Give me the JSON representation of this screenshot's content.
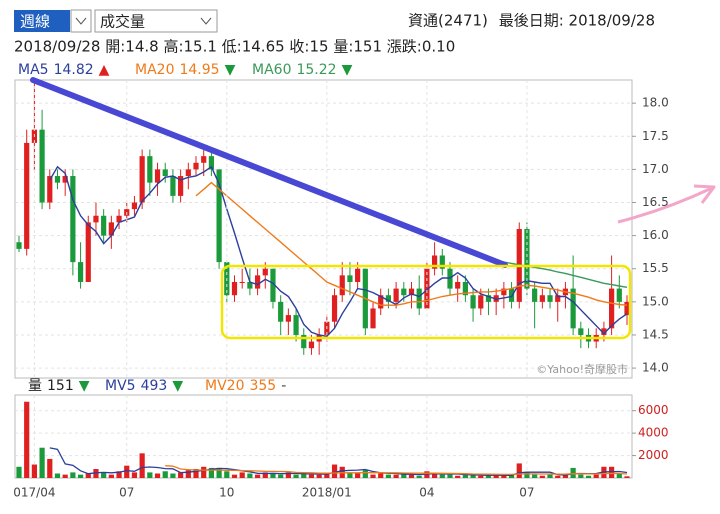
{
  "header": {
    "period": "週線",
    "indicator": "成交量",
    "stock": "資通(2471)",
    "last_date": "最後日期: 2018/09/28",
    "info": "2018/09/28 開:14.8 高:15.1 低:14.65 收:15 量:151 漲跌:0.10"
  },
  "chart_data": [
    {
      "type": "candlestick",
      "up_color": "#e02020",
      "down_color": "#1a9a3a",
      "watermark": "©Yahoo!奇摩股市",
      "grid": true,
      "ylim": [
        13.85,
        18.35
      ],
      "yticks": [
        {
          "value": 14,
          "label": "14.0"
        },
        14.5,
        {
          "value": 15,
          "label": "15.0"
        },
        15.5,
        {
          "value": 16,
          "label": "16.0"
        },
        16.5,
        {
          "value": 17,
          "label": "17.0"
        },
        17.5,
        {
          "value": 18,
          "label": "18.0"
        }
      ],
      "ohlc": [
        [
          15.9,
          16.0,
          15.75,
          15.8
        ],
        [
          15.8,
          17.6,
          15.7,
          17.4
        ],
        [
          17.4,
          18.3,
          17.0,
          17.6
        ],
        [
          17.6,
          17.9,
          16.4,
          16.5
        ],
        [
          16.5,
          17.0,
          16.4,
          16.9
        ],
        [
          16.9,
          17.0,
          16.7,
          16.8
        ],
        [
          16.8,
          17.0,
          16.6,
          16.9
        ],
        [
          16.9,
          17.0,
          15.4,
          15.6
        ],
        [
          15.6,
          15.9,
          15.2,
          15.3
        ],
        [
          15.3,
          16.3,
          15.3,
          16.2
        ],
        [
          16.2,
          16.5,
          16.0,
          16.3
        ],
        [
          16.3,
          16.4,
          15.9,
          16.0
        ],
        [
          16.0,
          16.3,
          15.8,
          16.2
        ],
        [
          16.2,
          16.4,
          16.1,
          16.3
        ],
        [
          16.3,
          16.5,
          16.2,
          16.4
        ],
        [
          16.4,
          16.6,
          16.3,
          16.5
        ],
        [
          16.5,
          17.3,
          16.4,
          17.2
        ],
        [
          17.2,
          17.3,
          16.6,
          16.8
        ],
        [
          16.8,
          17.1,
          16.6,
          17.0
        ],
        [
          17.0,
          17.1,
          16.8,
          16.9
        ],
        [
          16.9,
          17.0,
          16.5,
          16.6
        ],
        [
          16.6,
          17.0,
          16.5,
          16.9
        ],
        [
          16.9,
          17.1,
          16.7,
          17.0
        ],
        [
          17.0,
          17.2,
          16.9,
          17.1
        ],
        [
          17.1,
          17.3,
          16.9,
          17.2
        ],
        [
          17.2,
          17.3,
          16.9,
          17.0
        ],
        [
          17.0,
          17.0,
          15.5,
          15.6
        ],
        [
          15.6,
          15.6,
          15.0,
          15.1
        ],
        [
          15.1,
          15.4,
          15.0,
          15.3
        ],
        [
          15.3,
          15.5,
          15.2,
          15.3
        ],
        [
          15.3,
          15.5,
          15.1,
          15.2
        ],
        [
          15.2,
          15.5,
          15.1,
          15.4
        ],
        [
          15.4,
          15.6,
          15.2,
          15.5
        ],
        [
          15.5,
          15.5,
          14.9,
          15.0
        ],
        [
          15.0,
          15.1,
          14.5,
          14.7
        ],
        [
          14.7,
          14.9,
          14.5,
          14.8
        ],
        [
          14.8,
          14.9,
          14.4,
          14.5
        ],
        [
          14.5,
          14.6,
          14.2,
          14.3
        ],
        [
          14.3,
          14.5,
          14.2,
          14.4
        ],
        [
          14.4,
          14.6,
          14.2,
          14.5
        ],
        [
          14.5,
          14.8,
          14.4,
          14.7
        ],
        [
          14.7,
          15.2,
          14.6,
          15.1
        ],
        [
          15.1,
          15.6,
          15.0,
          15.4
        ],
        [
          15.4,
          15.6,
          15.1,
          15.3
        ],
        [
          15.3,
          15.6,
          15.2,
          15.5
        ],
        [
          15.5,
          15.5,
          14.5,
          14.6
        ],
        [
          14.6,
          15.0,
          14.6,
          14.9
        ],
        [
          14.9,
          15.2,
          14.8,
          15.1
        ],
        [
          15.1,
          15.2,
          14.9,
          15.0
        ],
        [
          15.0,
          15.3,
          14.9,
          15.2
        ],
        [
          15.2,
          15.3,
          15.0,
          15.1
        ],
        [
          15.1,
          15.3,
          14.9,
          15.2
        ],
        [
          15.2,
          15.4,
          14.8,
          14.9
        ],
        [
          14.9,
          15.6,
          14.9,
          15.5
        ],
        [
          15.5,
          15.9,
          15.4,
          15.7
        ],
        [
          15.7,
          15.8,
          15.4,
          15.5
        ],
        [
          15.5,
          15.6,
          15.1,
          15.2
        ],
        [
          15.2,
          15.4,
          15.0,
          15.3
        ],
        [
          15.3,
          15.4,
          15.0,
          15.1
        ],
        [
          15.1,
          15.2,
          14.7,
          14.9
        ],
        [
          14.9,
          15.2,
          14.8,
          15.1
        ],
        [
          15.1,
          15.2,
          14.8,
          15.0
        ],
        [
          15.0,
          15.2,
          14.8,
          15.1
        ],
        [
          15.1,
          15.3,
          14.9,
          15.2
        ],
        [
          15.2,
          15.3,
          14.9,
          15.0
        ],
        [
          15.0,
          16.2,
          14.9,
          16.1
        ],
        [
          16.1,
          16.2,
          15.1,
          15.2
        ],
        [
          15.2,
          15.3,
          14.6,
          15.0
        ],
        [
          15.0,
          15.2,
          14.9,
          15.1
        ],
        [
          15.1,
          15.2,
          14.9,
          15.0
        ],
        [
          15.0,
          15.2,
          14.7,
          15.1
        ],
        [
          15.1,
          15.3,
          14.9,
          15.2
        ],
        [
          15.2,
          15.7,
          14.5,
          14.6
        ],
        [
          14.6,
          14.7,
          14.3,
          14.5
        ],
        [
          14.5,
          14.6,
          14.3,
          14.4
        ],
        [
          14.4,
          14.6,
          14.3,
          14.5
        ],
        [
          14.5,
          14.7,
          14.4,
          14.6
        ],
        [
          14.6,
          15.7,
          14.5,
          15.2
        ],
        [
          15.2,
          15.4,
          14.9,
          15.0
        ],
        [
          14.8,
          15.1,
          14.65,
          15.0
        ]
      ],
      "series": [
        {
          "name": "MA5",
          "color": "#2b3f9e",
          "trend": "▲",
          "values": [
            null,
            null,
            null,
            null,
            16.84,
            17.04,
            16.94,
            16.54,
            16.3,
            16.16,
            16.06,
            15.88,
            16.0,
            16.2,
            16.24,
            16.28,
            16.52,
            16.64,
            16.78,
            16.88,
            16.9,
            16.84,
            16.88,
            16.9,
            16.96,
            17.04,
            16.78,
            16.4,
            16.04,
            15.66,
            15.3,
            15.26,
            15.34,
            15.28,
            15.16,
            15.08,
            14.9,
            14.66,
            14.54,
            14.5,
            14.48,
            14.6,
            14.82,
            15.0,
            15.2,
            15.18,
            15.14,
            15.08,
            15.02,
            14.96,
            15.06,
            15.12,
            15.08,
            15.18,
            15.28,
            15.36,
            15.36,
            15.44,
            15.36,
            15.2,
            15.12,
            15.08,
            15.04,
            15.06,
            15.08,
            15.28,
            15.32,
            15.3,
            15.28,
            15.28,
            15.08,
            15.08,
            15.0,
            14.88,
            14.76,
            14.64,
            14.52,
            14.64,
            14.74,
            14.82
          ]
        },
        {
          "name": "MA20",
          "color": "#f07a1a",
          "trend": "▼",
          "values": [
            null,
            null,
            null,
            null,
            null,
            null,
            null,
            null,
            null,
            null,
            null,
            null,
            null,
            null,
            null,
            null,
            null,
            null,
            null,
            null,
            null,
            null,
            null,
            16.6,
            16.7,
            16.8,
            16.7,
            16.6,
            16.5,
            16.4,
            16.3,
            16.2,
            16.1,
            16.0,
            15.9,
            15.8,
            15.7,
            15.6,
            15.5,
            15.4,
            15.3,
            15.25,
            15.2,
            15.15,
            15.1,
            15.05,
            15.0,
            14.95,
            14.95,
            14.95,
            14.97,
            15.0,
            15.0,
            15.02,
            15.05,
            15.08,
            15.1,
            15.12,
            15.13,
            15.14,
            15.15,
            15.15,
            15.16,
            15.18,
            15.2,
            15.24,
            15.25,
            15.24,
            15.22,
            15.2,
            15.18,
            15.15,
            15.13,
            15.1,
            15.07,
            15.03,
            15.0,
            14.98,
            14.96,
            14.95
          ]
        },
        {
          "name": "MA60",
          "color": "#3a9a5a",
          "trend": "▼",
          "values": [
            null,
            null,
            null,
            null,
            null,
            null,
            null,
            null,
            null,
            null,
            null,
            null,
            null,
            null,
            null,
            null,
            null,
            null,
            null,
            null,
            null,
            null,
            null,
            null,
            null,
            null,
            null,
            null,
            null,
            null,
            null,
            null,
            null,
            null,
            null,
            null,
            null,
            null,
            null,
            null,
            null,
            null,
            null,
            null,
            null,
            null,
            null,
            null,
            null,
            null,
            null,
            null,
            null,
            null,
            null,
            null,
            null,
            null,
            null,
            null,
            null,
            null,
            15.62,
            15.6,
            15.58,
            15.56,
            15.54,
            15.52,
            15.5,
            15.48,
            15.45,
            15.43,
            15.4,
            15.37,
            15.34,
            15.31,
            15.28,
            15.26,
            15.24,
            15.22
          ]
        }
      ]
    },
    {
      "type": "bar",
      "name": "量",
      "trend": "▼",
      "grid": true,
      "ylim": [
        0,
        7400
      ],
      "yticks": [
        2000,
        4000,
        6000
      ],
      "categories": [
        null,
        null,
        "017/04",
        null,
        null,
        null,
        null,
        null,
        null,
        null,
        null,
        null,
        null,
        null,
        "07",
        null,
        null,
        null,
        null,
        null,
        null,
        null,
        null,
        null,
        null,
        null,
        null,
        "10",
        null,
        null,
        null,
        null,
        null,
        null,
        null,
        null,
        null,
        null,
        null,
        null,
        "2018/01",
        null,
        null,
        null,
        null,
        null,
        null,
        null,
        null,
        null,
        null,
        null,
        null,
        "04",
        null,
        null,
        null,
        null,
        null,
        null,
        null,
        null,
        null,
        null,
        null,
        null,
        "07",
        null,
        null,
        null,
        null,
        null,
        null,
        null,
        null,
        null,
        null,
        null,
        null,
        null
      ],
      "values": [
        1000,
        6800,
        1200,
        2700,
        1700,
        400,
        300,
        500,
        300,
        400,
        800,
        500,
        300,
        600,
        1100,
        500,
        2200,
        500,
        400,
        600,
        400,
        500,
        700,
        800,
        1000,
        900,
        900,
        600,
        300,
        500,
        400,
        300,
        500,
        400,
        300,
        500,
        300,
        400,
        300,
        300,
        400,
        1200,
        1000,
        500,
        400,
        700,
        300,
        400,
        300,
        300,
        400,
        300,
        200,
        600,
        400,
        300,
        300,
        200,
        300,
        300,
        200,
        200,
        300,
        200,
        300,
        1300,
        500,
        300,
        200,
        300,
        200,
        300,
        900,
        300,
        200,
        300,
        1000,
        1000,
        400,
        151
      ],
      "series": [
        {
          "name": "MV5",
          "color": "#2b3f9e",
          "trend": "▼",
          "values": [
            null,
            null,
            null,
            null,
            2680,
            2560,
            1260,
            1120,
            640,
            380,
            460,
            500,
            460,
            520,
            660,
            600,
            940,
            980,
            940,
            840,
            820,
            480,
            520,
            600,
            680,
            780,
            860,
            840,
            740,
            640,
            540,
            420,
            400,
            420,
            380,
            400,
            400,
            380,
            360,
            360,
            340,
            520,
            640,
            680,
            700,
            760,
            580,
            460,
            420,
            400,
            340,
            340,
            300,
            360,
            380,
            360,
            360,
            360,
            300,
            280,
            260,
            240,
            260,
            240,
            240,
            460,
            520,
            520,
            520,
            520,
            300,
            260,
            380,
            400,
            380,
            400,
            540,
            560,
            580,
            493
          ]
        },
        {
          "name": "MV20",
          "color": "#f07a1a",
          "trend": "-",
          "values": [
            null,
            null,
            null,
            null,
            null,
            null,
            null,
            null,
            null,
            null,
            null,
            null,
            null,
            null,
            null,
            null,
            null,
            null,
            null,
            1100,
            1050,
            800,
            750,
            700,
            700,
            700,
            700,
            690,
            680,
            660,
            640,
            620,
            600,
            590,
            580,
            560,
            500,
            480,
            460,
            440,
            430,
            450,
            460,
            460,
            460,
            470,
            470,
            470,
            460,
            460,
            450,
            440,
            430,
            430,
            430,
            420,
            410,
            400,
            380,
            360,
            350,
            340,
            330,
            320,
            320,
            360,
            370,
            370,
            360,
            360,
            350,
            350,
            380,
            370,
            370,
            360,
            390,
            420,
            400,
            355
          ]
        }
      ]
    }
  ]
}
